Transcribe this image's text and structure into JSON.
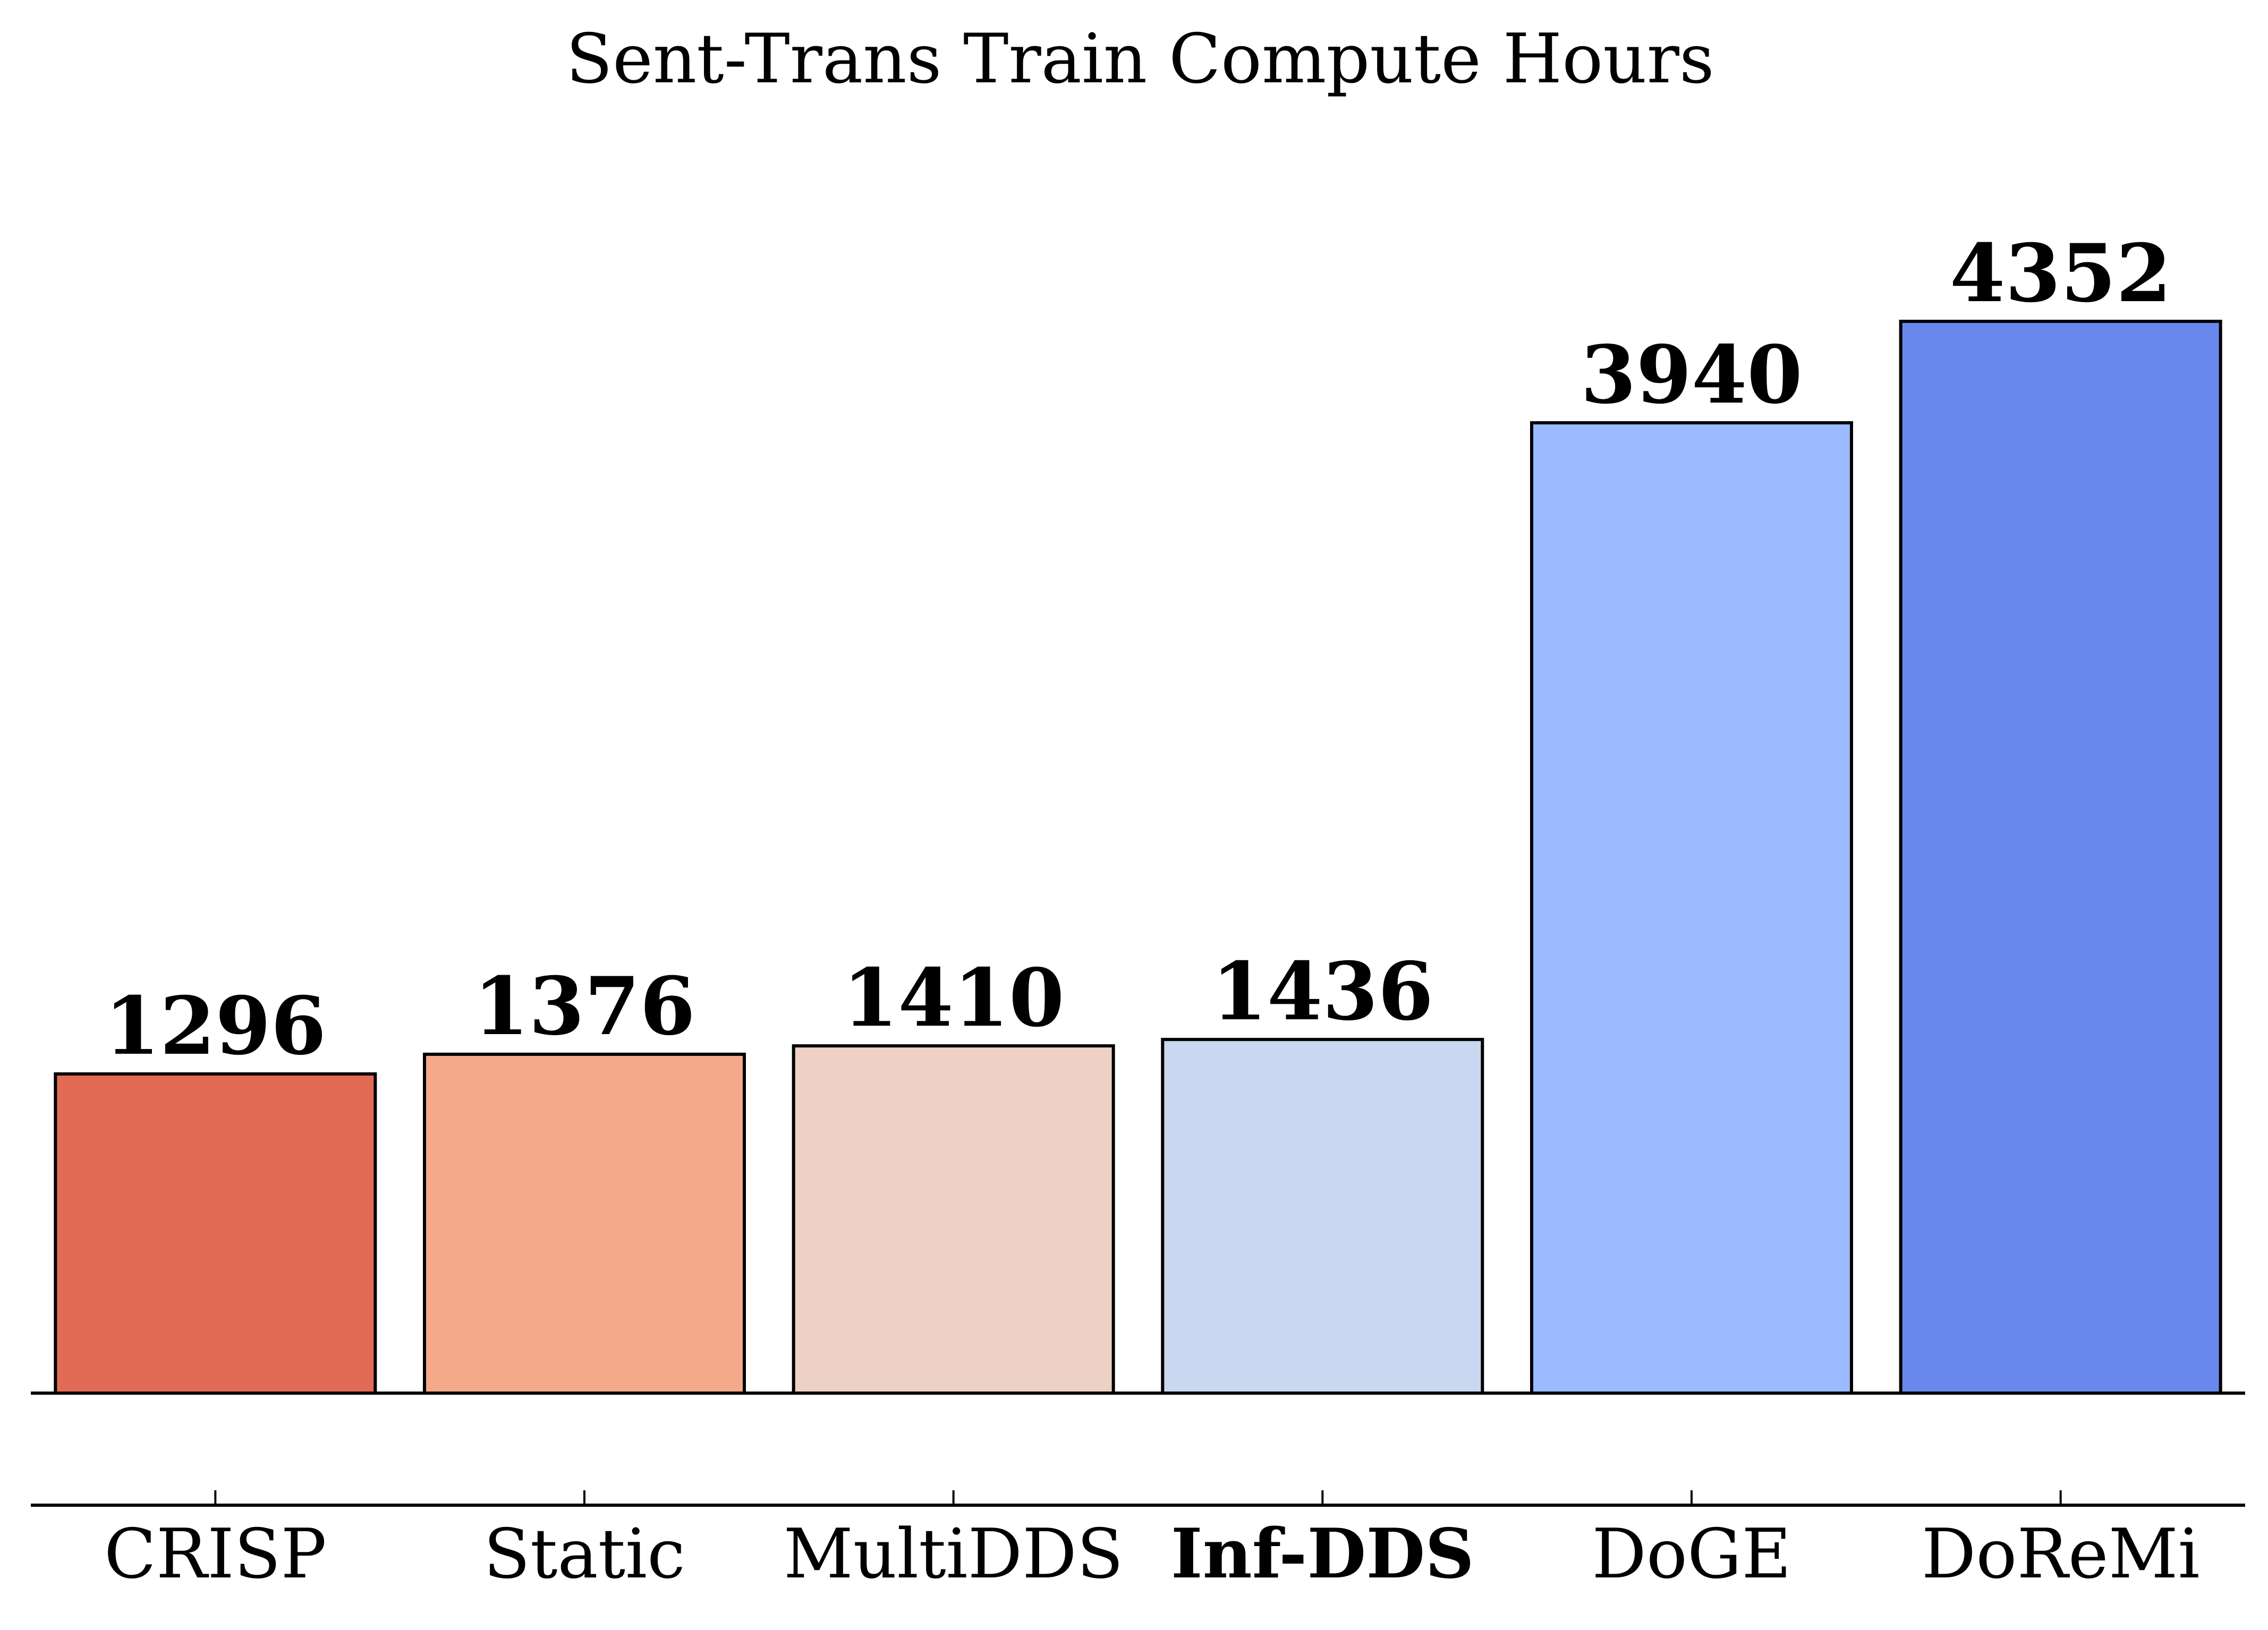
{
  "chart_data": {
    "type": "bar",
    "title": "Sent-Trans Train Compute Hours",
    "xlabel": "",
    "ylabel": "",
    "categories": [
      "CRISP",
      "Static",
      "MultiDDS",
      "Inf-DDS",
      "DoGE",
      "DoReMi"
    ],
    "emphasized_category": "Inf-DDS",
    "values": [
      1296,
      1376,
      1410,
      1436,
      3940,
      4352
    ],
    "value_labels": [
      "1296",
      "1376",
      "1410",
      "1436",
      "3940",
      "4352"
    ],
    "colors": [
      "#e36b56",
      "#f5a98b",
      "#ecd1c4",
      "#c9d7f0",
      "#9bbaff",
      "#6888ee"
    ],
    "ylim": [
      0,
      4352
    ],
    "grid": false,
    "legend": "none"
  }
}
